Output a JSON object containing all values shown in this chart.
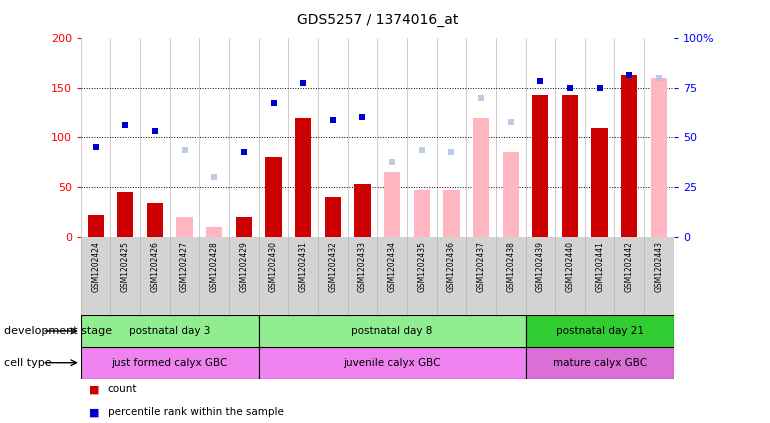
{
  "title": "GDS5257 / 1374016_at",
  "samples": [
    "GSM1202424",
    "GSM1202425",
    "GSM1202426",
    "GSM1202427",
    "GSM1202428",
    "GSM1202429",
    "GSM1202430",
    "GSM1202431",
    "GSM1202432",
    "GSM1202433",
    "GSM1202434",
    "GSM1202435",
    "GSM1202436",
    "GSM1202437",
    "GSM1202438",
    "GSM1202439",
    "GSM1202440",
    "GSM1202441",
    "GSM1202442",
    "GSM1202443"
  ],
  "count_present": [
    22,
    45,
    34,
    null,
    null,
    20,
    80,
    120,
    40,
    53,
    null,
    null,
    null,
    null,
    null,
    143,
    143,
    110,
    163,
    null
  ],
  "count_absent": [
    null,
    null,
    null,
    20,
    10,
    null,
    null,
    null,
    null,
    null,
    65,
    47,
    47,
    120,
    85,
    null,
    null,
    null,
    null,
    160
  ],
  "rank_present": [
    90,
    113,
    107,
    null,
    null,
    85,
    135,
    155,
    118,
    121,
    null,
    null,
    null,
    null,
    null,
    157,
    150,
    150,
    163,
    null
  ],
  "rank_absent": [
    null,
    null,
    null,
    87,
    60,
    null,
    null,
    null,
    null,
    null,
    75,
    87,
    85,
    140,
    116,
    null,
    null,
    null,
    null,
    160
  ],
  "dev_stage_groups": [
    {
      "label": "postnatal day 3",
      "start": 0,
      "end": 6,
      "color": "#90ee90"
    },
    {
      "label": "postnatal day 8",
      "start": 6,
      "end": 15,
      "color": "#90ee90"
    },
    {
      "label": "postnatal day 21",
      "start": 15,
      "end": 20,
      "color": "#32cd32"
    }
  ],
  "cell_type_groups": [
    {
      "label": "just formed calyx GBC",
      "start": 0,
      "end": 6,
      "color": "#ee82ee"
    },
    {
      "label": "juvenile calyx GBC",
      "start": 6,
      "end": 15,
      "color": "#ee82ee"
    },
    {
      "label": "mature calyx GBC",
      "start": 15,
      "end": 20,
      "color": "#da70d6"
    }
  ],
  "ylim_left": [
    0,
    200
  ],
  "ylim_right": [
    0,
    100
  ],
  "yticks_left": [
    0,
    50,
    100,
    150,
    200
  ],
  "yticks_right": [
    0,
    25,
    50,
    75,
    100
  ],
  "color_present_bar": "#cc0000",
  "color_absent_bar": "#ffb6c1",
  "color_present_rank": "#0000cc",
  "color_absent_rank": "#b0c4de",
  "bar_width": 0.55,
  "dev_stage_label": "development stage",
  "cell_type_label": "cell type"
}
